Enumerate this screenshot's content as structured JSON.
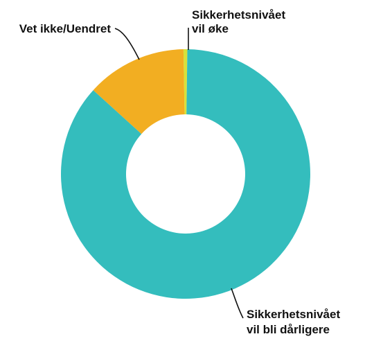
{
  "chart_data": {
    "type": "pie",
    "donut": true,
    "slices": [
      {
        "label_lines": [
          "Sikkerhetsnivået",
          "vil øke"
        ],
        "value": 0.5,
        "color": "#D7E23A"
      },
      {
        "label_lines": [
          "Sikkerhetsnivået",
          "vil bli dårligere"
        ],
        "value": 86.5,
        "color": "#34BDBD"
      },
      {
        "label_lines": [
          "Vet ikke/Uendret"
        ],
        "value": 13,
        "color": "#F2AE22"
      }
    ]
  }
}
